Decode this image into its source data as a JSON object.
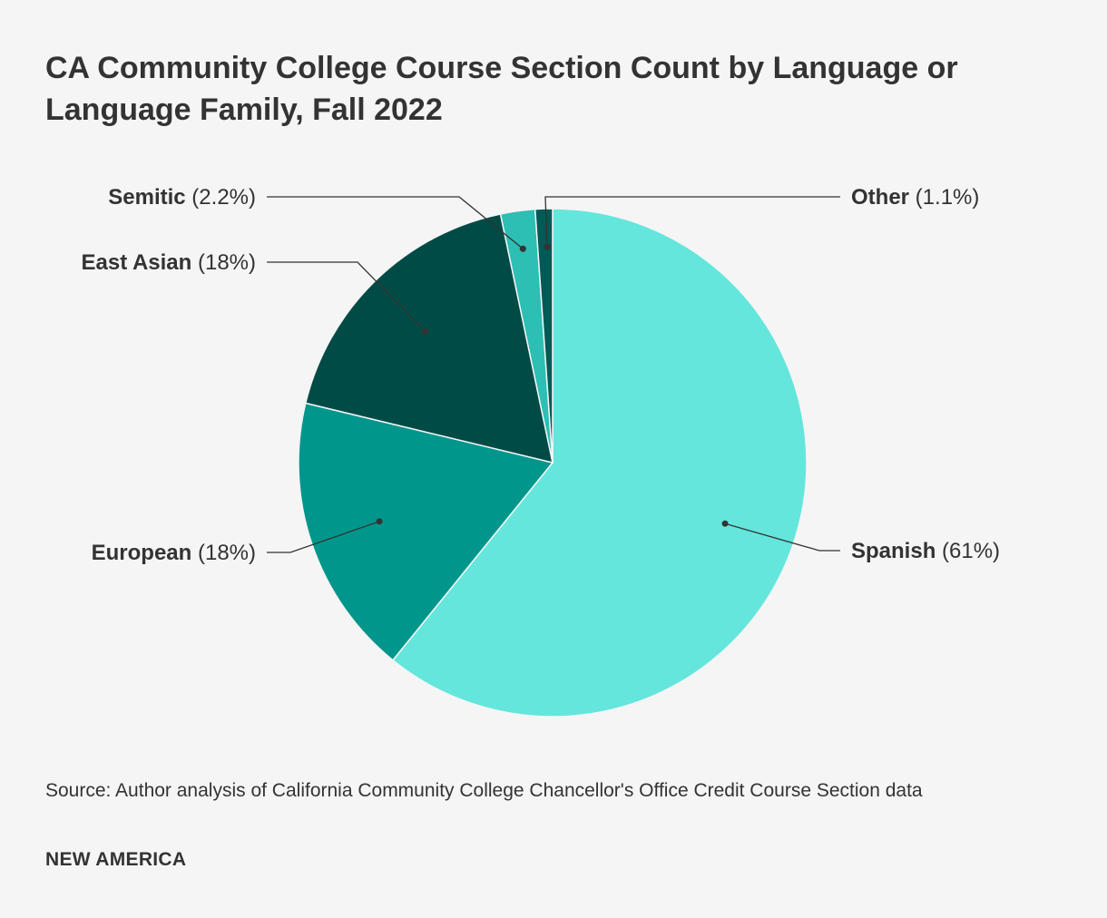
{
  "header": {
    "title": "CA Community College Course Section Count by Language or Language Family, Fall 2022"
  },
  "chart_data": {
    "type": "pie",
    "title": "CA Community College Course Section Count by Language or Language Family, Fall 2022",
    "slices": [
      {
        "label": "Spanish",
        "value": 61,
        "value_label": "(61%)",
        "color": "#64e6dc"
      },
      {
        "label": "European",
        "value": 18,
        "value_label": "(18%)",
        "color": "#00968c"
      },
      {
        "label": "East Asian",
        "value": 18,
        "value_label": "(18%)",
        "color": "#004b46"
      },
      {
        "label": "Semitic",
        "value": 2.2,
        "value_label": "(2.2%)",
        "color": "#2dbeb4"
      },
      {
        "label": "Other",
        "value": 1.1,
        "value_label": "(1.1%)",
        "color": "#005a55"
      }
    ]
  },
  "footer": {
    "source": "Source: Author analysis of California Community College Chancellor's Office Credit Course Section data",
    "brand": "NEW AMERICA"
  }
}
